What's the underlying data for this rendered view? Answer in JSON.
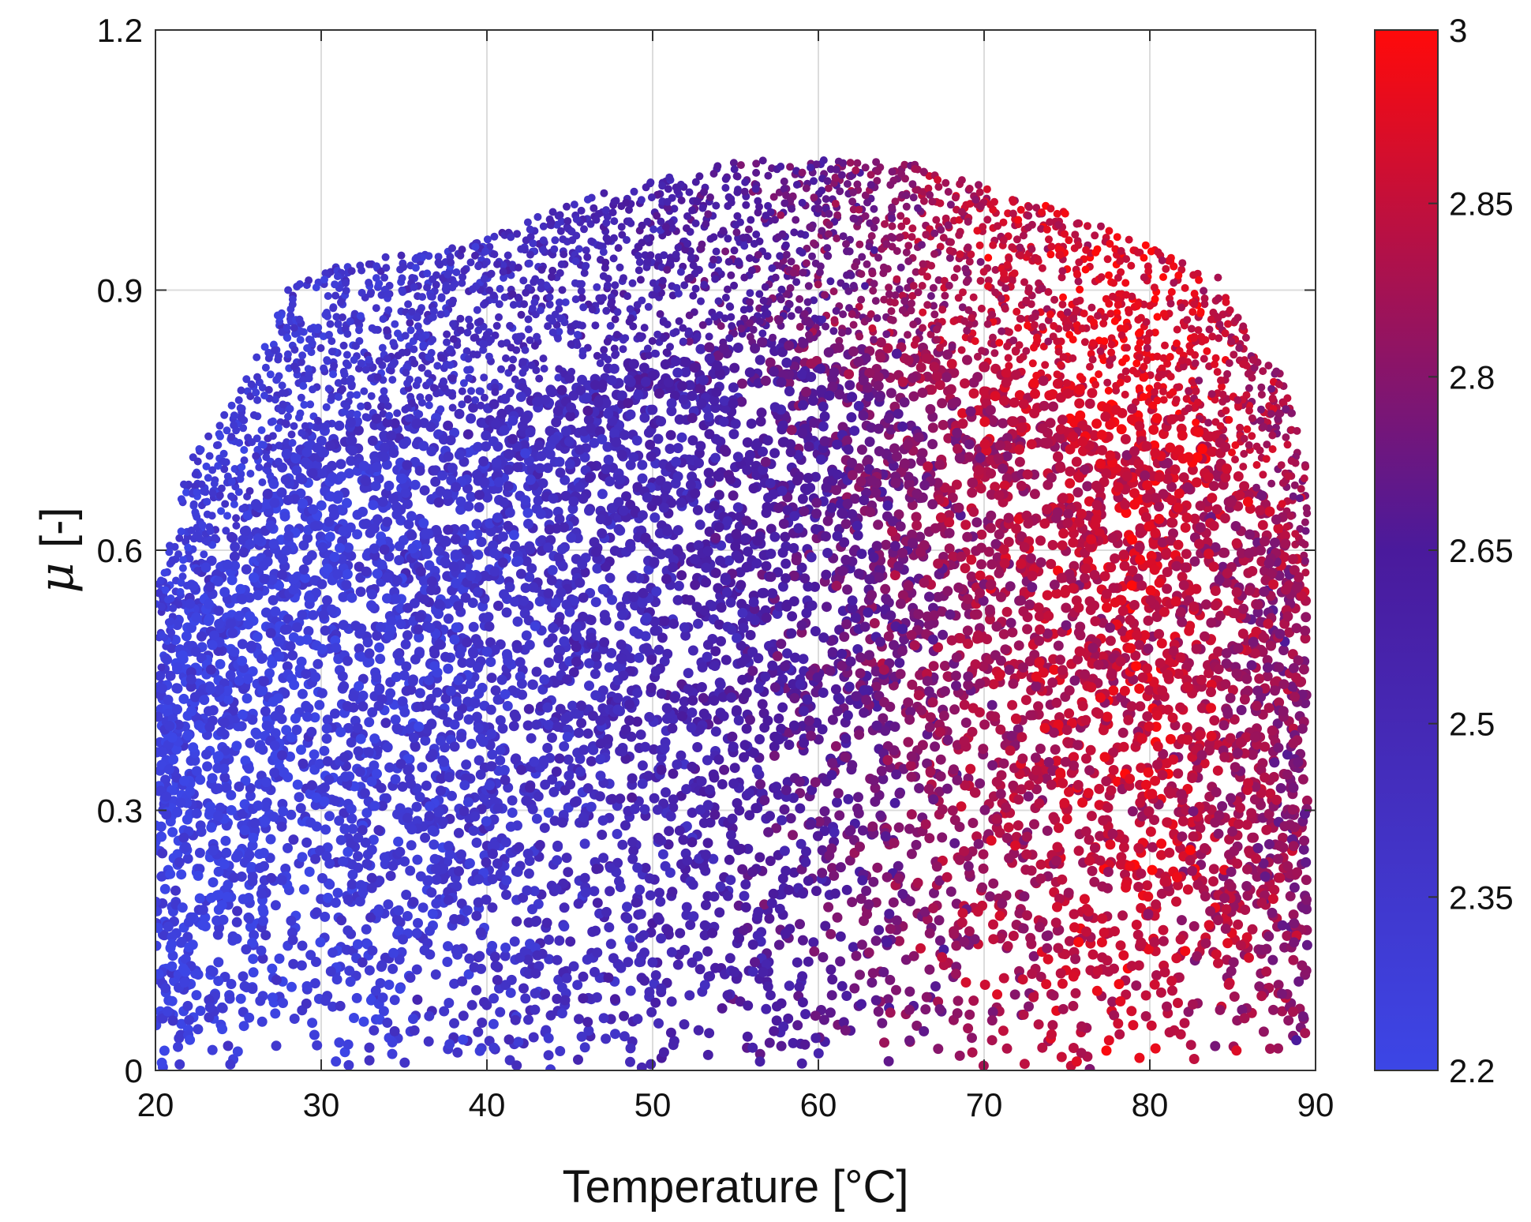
{
  "chart_data": {
    "type": "scatter",
    "title": "",
    "xlabel": "Temperature [°C]",
    "ylabel_symbol": "μ",
    "ylabel_unit": "[-]",
    "xlim": [
      20,
      90
    ],
    "ylim": [
      0,
      1.2
    ],
    "x_ticks": [
      "20",
      "30",
      "40",
      "50",
      "60",
      "70",
      "80",
      "90"
    ],
    "x_tick_values": [
      20,
      30,
      40,
      50,
      60,
      70,
      80,
      90
    ],
    "y_ticks": [
      "0",
      "0.3",
      "0.6",
      "0.9",
      "1.2"
    ],
    "y_tick_values": [
      0,
      0.3,
      0.6,
      0.9,
      1.2
    ],
    "grid": true,
    "colorbar": {
      "min": 2.2,
      "max": 3,
      "ticks": [
        "2.2",
        "2.35",
        "2.5",
        "2.65",
        "2.8",
        "2.85",
        "3"
      ],
      "tick_values": [
        2.2,
        2.35,
        2.5,
        2.65,
        2.8,
        2.85,
        3
      ],
      "color_low": "#3c46e6",
      "color_mid": "#4a1a9c",
      "color_high": "#ff0a0a"
    },
    "point_cloud": {
      "x_range": [
        20,
        89.5
      ],
      "y_range": [
        0,
        1.06
      ],
      "envelope": [
        {
          "x": 20,
          "y": 0.55
        },
        {
          "x": 22,
          "y": 0.7
        },
        {
          "x": 25,
          "y": 0.78
        },
        {
          "x": 28,
          "y": 0.9
        },
        {
          "x": 32,
          "y": 0.94
        },
        {
          "x": 36,
          "y": 0.94
        },
        {
          "x": 40,
          "y": 0.96
        },
        {
          "x": 45,
          "y": 1.0
        },
        {
          "x": 50,
          "y": 1.03
        },
        {
          "x": 55,
          "y": 1.05
        },
        {
          "x": 60,
          "y": 1.05
        },
        {
          "x": 65,
          "y": 1.05
        },
        {
          "x": 70,
          "y": 1.02
        },
        {
          "x": 75,
          "y": 0.99
        },
        {
          "x": 80,
          "y": 0.95
        },
        {
          "x": 84,
          "y": 0.92
        },
        {
          "x": 86,
          "y": 0.85
        },
        {
          "x": 88,
          "y": 0.8
        },
        {
          "x": 89.5,
          "y": 0.7
        }
      ],
      "color_trend": [
        {
          "x": 20,
          "value": 2.24
        },
        {
          "x": 30,
          "value": 2.28
        },
        {
          "x": 40,
          "value": 2.36
        },
        {
          "x": 50,
          "value": 2.48
        },
        {
          "x": 60,
          "value": 2.62
        },
        {
          "x": 70,
          "value": 2.8
        },
        {
          "x": 80,
          "value": 2.88
        },
        {
          "x": 90,
          "value": 2.72
        }
      ]
    }
  }
}
